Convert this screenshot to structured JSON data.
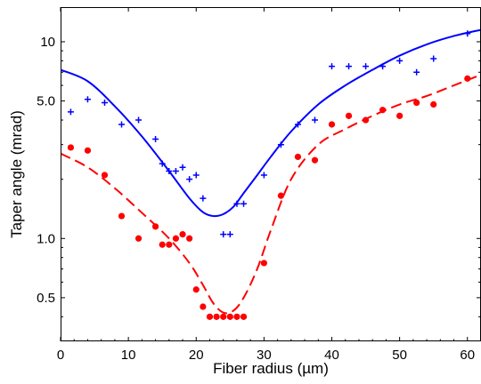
{
  "chart_data": {
    "type": "scatter",
    "title": "",
    "xlabel": "Fiber radius (µm)",
    "ylabel": "Taper angle (mrad)",
    "xlim": [
      0,
      62
    ],
    "ylim": [
      0.3,
      15
    ],
    "yscale": "log",
    "grid": false,
    "xticks": [
      0,
      10,
      20,
      30,
      40,
      50,
      60
    ],
    "xtick_labels": [
      "0",
      "10",
      "20",
      "30",
      "40",
      "50",
      "60"
    ],
    "yticks": [
      0.5,
      1.0,
      5.0,
      10
    ],
    "ytick_labels": [
      "0.5",
      "1.0",
      "5.0",
      "10"
    ],
    "series": [
      {
        "kind": "scatter",
        "marker": "plus",
        "color": "#0000ff",
        "x": [
          1.5,
          4,
          6.5,
          9,
          11.5,
          14,
          15,
          16,
          17,
          18,
          19,
          20,
          21,
          24,
          25,
          26,
          27,
          30,
          32.5,
          35,
          37.5,
          40,
          42.5,
          45,
          47.5,
          50,
          52.5,
          55,
          60
        ],
        "y": [
          4.4,
          5.1,
          4.9,
          3.8,
          4.0,
          3.2,
          2.4,
          2.2,
          2.2,
          2.3,
          2.0,
          2.1,
          1.6,
          1.05,
          1.05,
          1.5,
          1.5,
          2.1,
          3.0,
          3.8,
          4.0,
          7.5,
          7.5,
          7.5,
          7.5,
          8.0,
          7.0,
          8.2,
          11.0
        ]
      },
      {
        "kind": "line",
        "style": "solid",
        "color": "#0000ff",
        "x": [
          0,
          4,
          8,
          12,
          16,
          19,
          21,
          22.5,
          24,
          25.5,
          27,
          29,
          31,
          34,
          38,
          42,
          46,
          50,
          54,
          58,
          62
        ],
        "y": [
          7.2,
          6.3,
          4.7,
          3.3,
          2.2,
          1.6,
          1.36,
          1.3,
          1.33,
          1.45,
          1.7,
          2.1,
          2.6,
          3.5,
          4.8,
          6.0,
          7.2,
          8.5,
          9.7,
          10.7,
          11.5
        ]
      },
      {
        "kind": "scatter",
        "marker": "dot",
        "color": "#ff0000",
        "x": [
          1.5,
          4,
          6.5,
          9,
          11.5,
          14,
          15,
          16,
          17,
          18,
          19,
          20,
          21,
          22,
          23,
          24,
          25,
          26,
          27,
          30,
          32.5,
          35,
          37.5,
          40,
          42.5,
          45,
          47.5,
          50,
          52.5,
          55,
          60
        ],
        "y": [
          2.9,
          2.8,
          2.1,
          1.3,
          1.0,
          1.15,
          0.93,
          0.93,
          1.0,
          1.05,
          1.0,
          0.55,
          0.45,
          0.4,
          0.4,
          0.4,
          0.4,
          0.4,
          0.4,
          0.75,
          1.65,
          2.6,
          2.5,
          3.8,
          4.2,
          4.0,
          4.5,
          4.2,
          4.9,
          4.8,
          6.5
        ]
      },
      {
        "kind": "line",
        "style": "dashed",
        "color": "#ff0000",
        "x": [
          0,
          4,
          8,
          12,
          16,
          19,
          21,
          22.5,
          24,
          25.5,
          27,
          29,
          31,
          34,
          38,
          42,
          46,
          50,
          54,
          58,
          62
        ],
        "y": [
          2.7,
          2.3,
          1.8,
          1.35,
          1.0,
          0.75,
          0.58,
          0.47,
          0.42,
          0.43,
          0.5,
          0.7,
          1.1,
          2.0,
          3.0,
          3.6,
          4.2,
          4.8,
          5.3,
          6.0,
          6.8
        ]
      }
    ]
  }
}
